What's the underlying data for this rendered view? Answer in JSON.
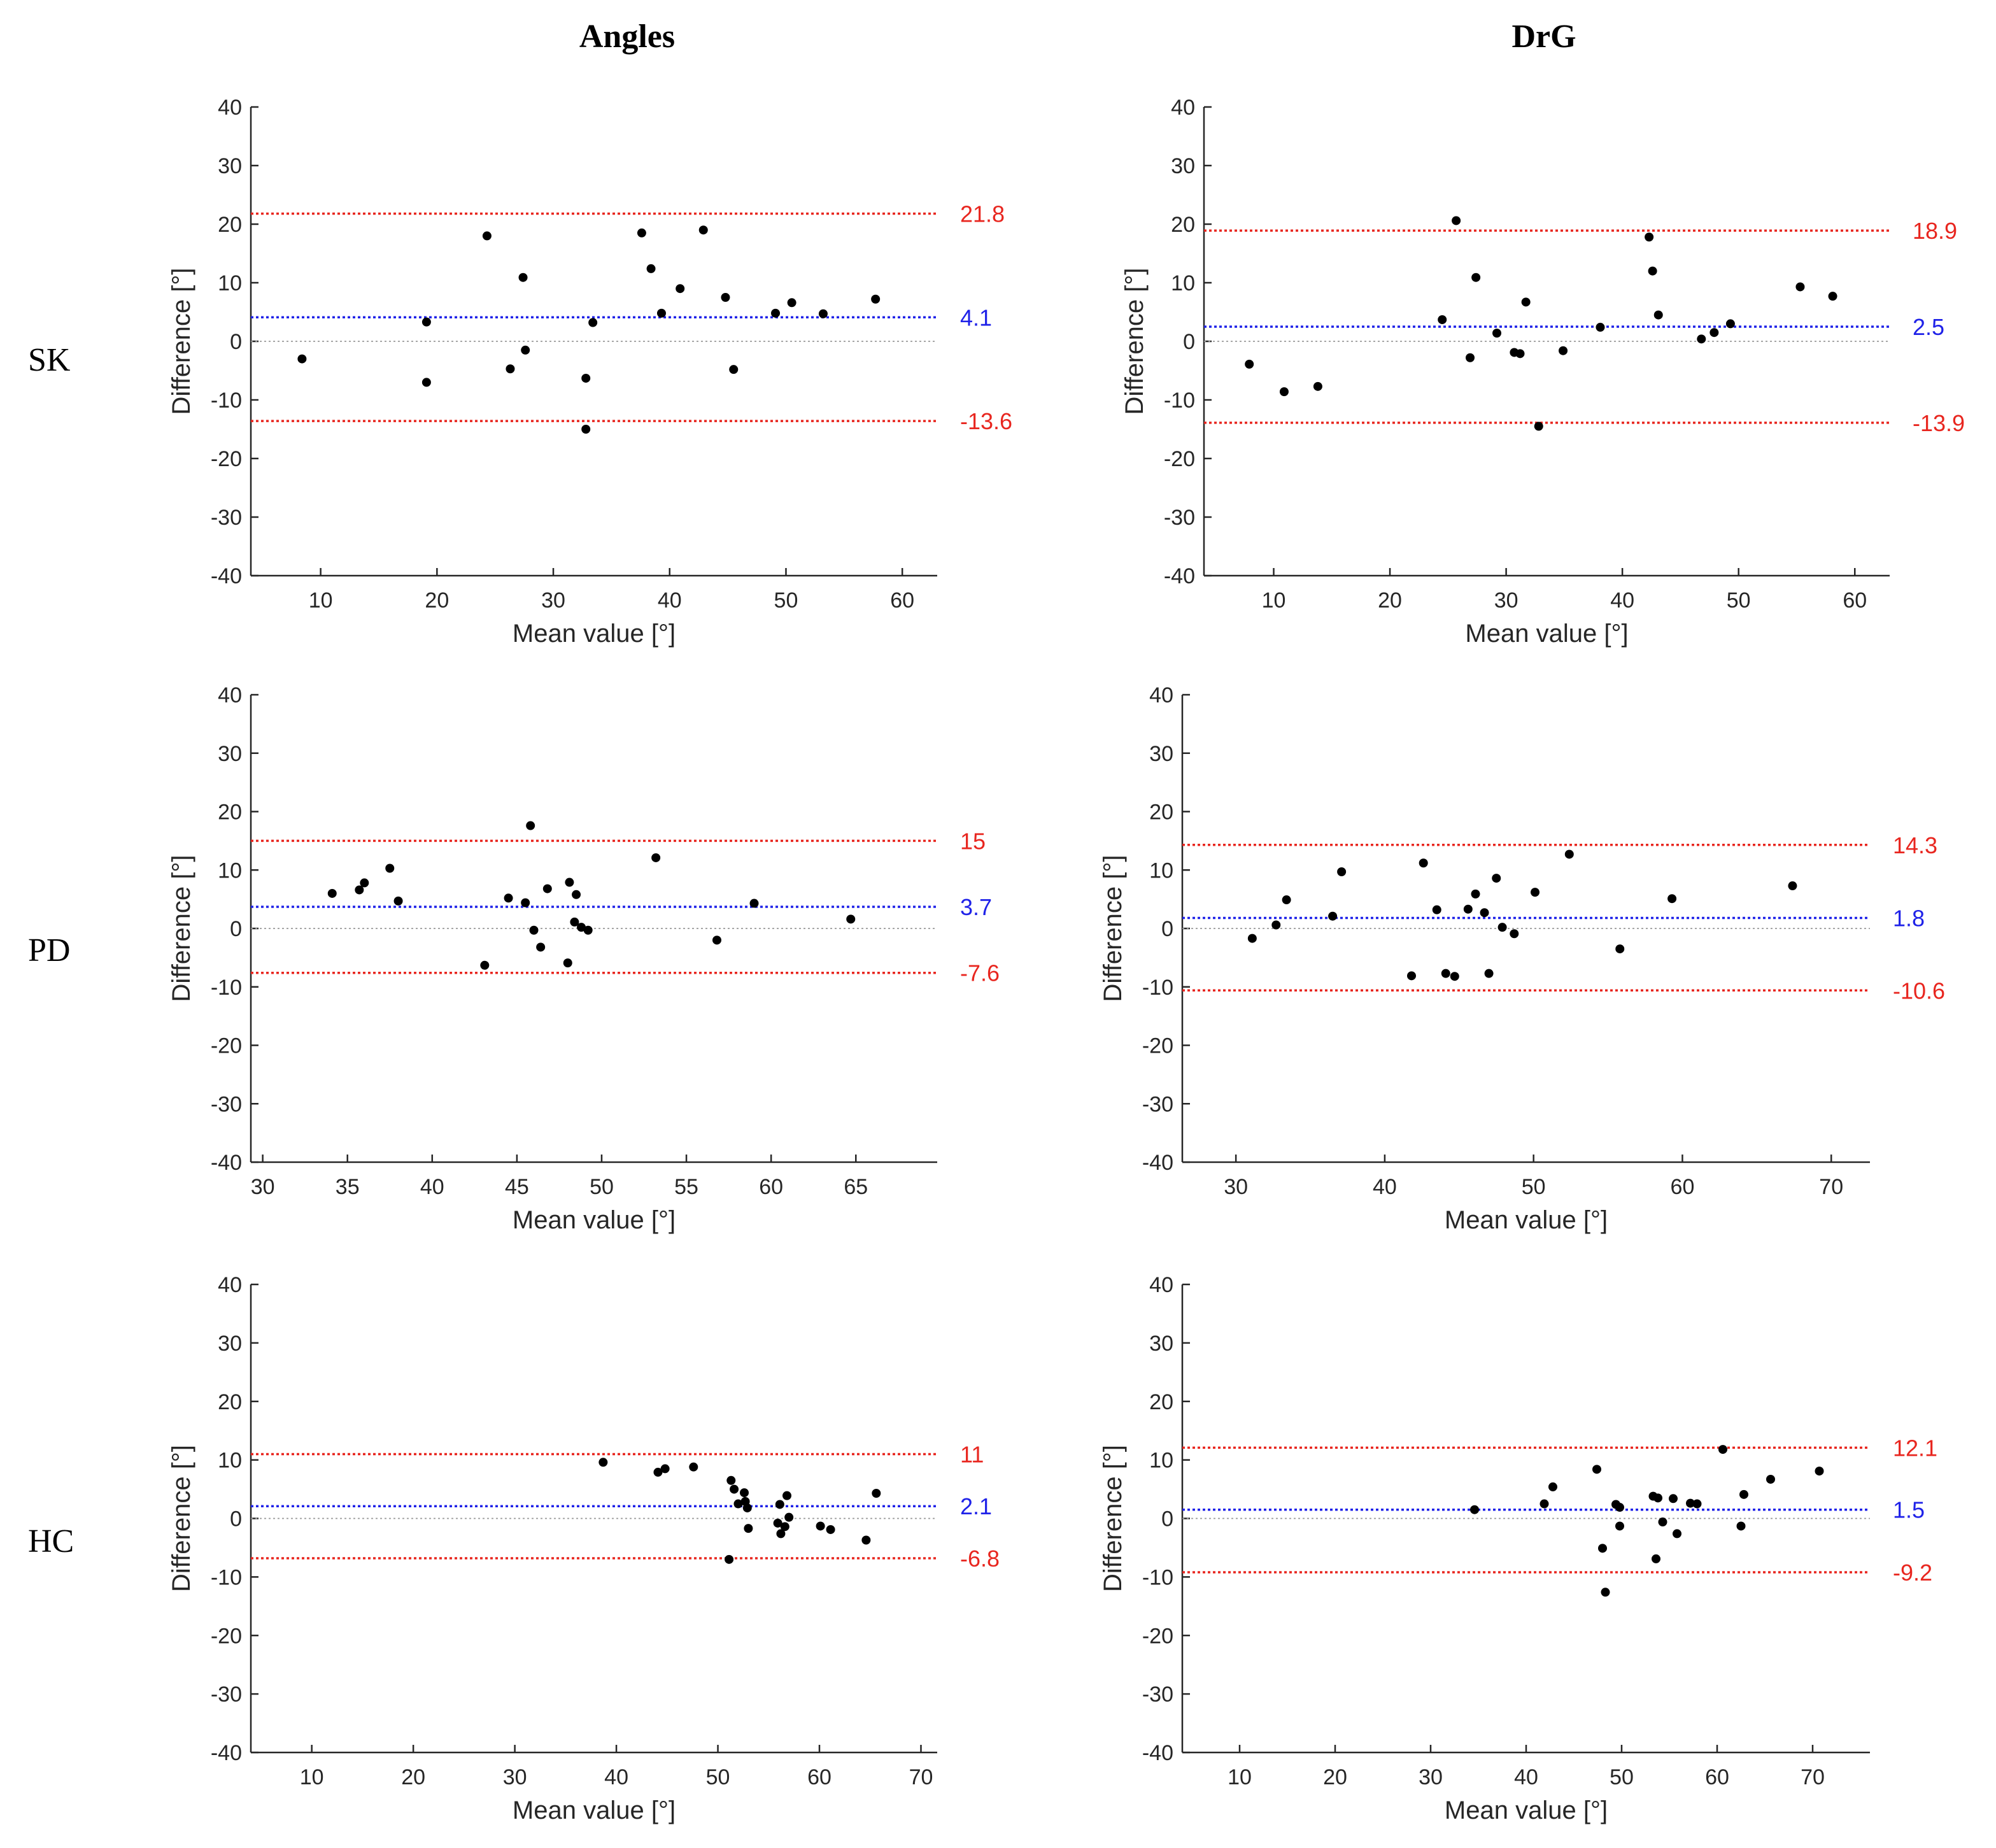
{
  "column_titles": [
    "Angles",
    "DrG"
  ],
  "row_labels": [
    "SK",
    "PD",
    "HC"
  ],
  "colors": {
    "limit": "#e8261f",
    "mean": "#1f22e8",
    "zero": "#9a9a9a",
    "point": "#000000",
    "axis": "#262626"
  },
  "chart_data": [
    {
      "type": "scatter",
      "row": "SK",
      "column": "Angles",
      "xlabel": "Mean value [°]",
      "ylabel": "Difference [°]",
      "xlim": [
        4,
        63
      ],
      "ylim": [
        -40,
        40
      ],
      "xticks": [
        10,
        20,
        30,
        40,
        50,
        60
      ],
      "yticks": [
        -40,
        -30,
        -20,
        -10,
        0,
        10,
        20,
        30,
        40
      ],
      "grid": false,
      "reference_lines": [
        {
          "kind": "upper",
          "value": 21.8,
          "label": "21.8"
        },
        {
          "kind": "mean",
          "value": 4.1,
          "label": "4.1"
        },
        {
          "kind": "lower",
          "value": -13.6,
          "label": "-13.6"
        }
      ],
      "points": [
        [
          8.4,
          -3
        ],
        [
          19.1,
          3.3
        ],
        [
          19.1,
          -7
        ],
        [
          24.3,
          18
        ],
        [
          26.3,
          -4.7
        ],
        [
          27.4,
          10.9
        ],
        [
          27.6,
          -1.5
        ],
        [
          32.8,
          -6.3
        ],
        [
          32.8,
          -15
        ],
        [
          33.4,
          3.2
        ],
        [
          37.6,
          18.5
        ],
        [
          38.4,
          12.4
        ],
        [
          39.3,
          4.8
        ],
        [
          40.9,
          9
        ],
        [
          42.9,
          19
        ],
        [
          44.8,
          7.5
        ],
        [
          45.5,
          -4.8
        ],
        [
          49.1,
          4.8
        ],
        [
          50.5,
          6.6
        ],
        [
          53.2,
          4.7
        ],
        [
          57.7,
          7.2
        ]
      ]
    },
    {
      "type": "scatter",
      "row": "SK",
      "column": "DrG",
      "xlabel": "Mean value [°]",
      "ylabel": "Difference [°]",
      "xlim": [
        4,
        63
      ],
      "ylim": [
        -40,
        40
      ],
      "xticks": [
        10,
        20,
        30,
        40,
        50,
        60
      ],
      "yticks": [
        -40,
        -30,
        -20,
        -10,
        0,
        10,
        20,
        30,
        40
      ],
      "grid": false,
      "reference_lines": [
        {
          "kind": "upper",
          "value": 18.9,
          "label": "18.9"
        },
        {
          "kind": "mean",
          "value": 2.5,
          "label": "2.5"
        },
        {
          "kind": "lower",
          "value": -13.9,
          "label": "-13.9"
        }
      ],
      "points": [
        [
          7.9,
          -3.9
        ],
        [
          10.9,
          -8.6
        ],
        [
          13.8,
          -7.7
        ],
        [
          24.5,
          3.7
        ],
        [
          25.7,
          20.6
        ],
        [
          26.9,
          -2.8
        ],
        [
          27.4,
          10.9
        ],
        [
          29.2,
          1.4
        ],
        [
          30.7,
          -1.9
        ],
        [
          31.2,
          -2.1
        ],
        [
          31.7,
          6.7
        ],
        [
          32.8,
          -14.5
        ],
        [
          34.9,
          -1.6
        ],
        [
          38.1,
          2.4
        ],
        [
          42.3,
          17.8
        ],
        [
          42.6,
          12
        ],
        [
          43.1,
          4.5
        ],
        [
          46.8,
          0.4
        ],
        [
          47.9,
          1.5
        ],
        [
          49.3,
          3
        ],
        [
          55.3,
          9.3
        ],
        [
          58.1,
          7.7
        ]
      ]
    },
    {
      "type": "scatter",
      "row": "PD",
      "column": "Angles",
      "xlabel": "Mean value [°]",
      "ylabel": "Difference [°]",
      "xlim": [
        29.3,
        69.8
      ],
      "ylim": [
        -40,
        40
      ],
      "xticks": [
        30,
        35,
        40,
        45,
        50,
        55,
        60,
        65
      ],
      "yticks": [
        -40,
        -30,
        -20,
        -10,
        0,
        10,
        20,
        30,
        40
      ],
      "grid": false,
      "reference_lines": [
        {
          "kind": "upper",
          "value": 15,
          "label": "15"
        },
        {
          "kind": "mean",
          "value": 3.7,
          "label": "3.7"
        },
        {
          "kind": "lower",
          "value": -7.6,
          "label": "-7.6"
        }
      ],
      "points": [
        [
          34.1,
          6
        ],
        [
          35.7,
          6.6
        ],
        [
          36,
          7.8
        ],
        [
          37.5,
          10.3
        ],
        [
          38,
          4.7
        ],
        [
          43.1,
          -6.3
        ],
        [
          44.5,
          5.2
        ],
        [
          45.5,
          4.4
        ],
        [
          45.8,
          17.6
        ],
        [
          46,
          -0.3
        ],
        [
          46.4,
          -3.2
        ],
        [
          46.8,
          6.8
        ],
        [
          48,
          -5.9
        ],
        [
          48.1,
          7.9
        ],
        [
          48.4,
          1.1
        ],
        [
          48.5,
          5.8
        ],
        [
          48.8,
          0.2
        ],
        [
          49.2,
          -0.3
        ],
        [
          53.2,
          12.1
        ],
        [
          56.8,
          -2
        ],
        [
          59,
          4.3
        ],
        [
          64.7,
          1.6
        ]
      ]
    },
    {
      "type": "scatter",
      "row": "PD",
      "column": "DrG",
      "xlabel": "Mean value [°]",
      "ylabel": "Difference [°]",
      "xlim": [
        26.4,
        72.6
      ],
      "ylim": [
        -40,
        40
      ],
      "xticks": [
        30,
        40,
        50,
        60,
        70
      ],
      "yticks": [
        -40,
        -30,
        -20,
        -10,
        0,
        10,
        20,
        30,
        40
      ],
      "grid": false,
      "reference_lines": [
        {
          "kind": "upper",
          "value": 14.3,
          "label": "14.3"
        },
        {
          "kind": "mean",
          "value": 1.8,
          "label": "1.8"
        },
        {
          "kind": "lower",
          "value": -10.6,
          "label": "-10.6"
        }
      ],
      "points": [
        [
          31.1,
          -1.7
        ],
        [
          32.7,
          0.6
        ],
        [
          33.4,
          4.9
        ],
        [
          36.5,
          2.1
        ],
        [
          37.1,
          9.7
        ],
        [
          41.8,
          -8.1
        ],
        [
          42.6,
          11.2
        ],
        [
          43.5,
          3.2
        ],
        [
          44.1,
          -7.7
        ],
        [
          44.7,
          -8.2
        ],
        [
          45.6,
          3.3
        ],
        [
          46.1,
          5.9
        ],
        [
          46.7,
          2.7
        ],
        [
          47,
          -7.7
        ],
        [
          47.5,
          8.6
        ],
        [
          47.9,
          0.2
        ],
        [
          48.7,
          -0.9
        ],
        [
          50.1,
          6.2
        ],
        [
          52.4,
          12.7
        ],
        [
          55.8,
          -3.5
        ],
        [
          59.3,
          5.1
        ],
        [
          67.4,
          7.3
        ]
      ]
    },
    {
      "type": "scatter",
      "row": "HC",
      "column": "Angles",
      "xlabel": "Mean value [°]",
      "ylabel": "Difference [°]",
      "xlim": [
        4,
        71.6
      ],
      "ylim": [
        -40,
        40
      ],
      "xticks": [
        10,
        20,
        30,
        40,
        50,
        60,
        70
      ],
      "yticks": [
        -40,
        -30,
        -20,
        -10,
        0,
        10,
        20,
        30,
        40
      ],
      "grid": false,
      "reference_lines": [
        {
          "kind": "upper",
          "value": 11,
          "label": "11"
        },
        {
          "kind": "mean",
          "value": 2.1,
          "label": "2.1"
        },
        {
          "kind": "lower",
          "value": -6.8,
          "label": "-6.8"
        }
      ],
      "points": [
        [
          38.7,
          9.6
        ],
        [
          44.1,
          7.9
        ],
        [
          44.8,
          8.5
        ],
        [
          47.6,
          8.8
        ],
        [
          51.1,
          -7
        ],
        [
          51.3,
          6.5
        ],
        [
          51.6,
          5
        ],
        [
          52,
          2.5
        ],
        [
          52.6,
          4.4
        ],
        [
          52.7,
          2.9
        ],
        [
          52.9,
          1.8
        ],
        [
          53,
          -1.7
        ],
        [
          55.9,
          -0.8
        ],
        [
          56.1,
          2.4
        ],
        [
          56.2,
          -2.6
        ],
        [
          56.6,
          -1.4
        ],
        [
          56.8,
          3.9
        ],
        [
          57,
          0.2
        ],
        [
          60.1,
          -1.3
        ],
        [
          61.1,
          -1.9
        ],
        [
          64.6,
          -3.7
        ],
        [
          65.6,
          4.3
        ]
      ]
    },
    {
      "type": "scatter",
      "row": "HC",
      "column": "DrG",
      "xlabel": "Mean value [°]",
      "ylabel": "Difference [°]",
      "xlim": [
        4,
        76
      ],
      "ylim": [
        -40,
        40
      ],
      "xticks": [
        10,
        20,
        30,
        40,
        50,
        60,
        70
      ],
      "yticks": [
        -40,
        -30,
        -20,
        -10,
        0,
        10,
        20,
        30,
        40
      ],
      "grid": false,
      "reference_lines": [
        {
          "kind": "upper",
          "value": 12.1,
          "label": "12.1"
        },
        {
          "kind": "mean",
          "value": 1.5,
          "label": "1.5"
        },
        {
          "kind": "lower",
          "value": -9.2,
          "label": "-9.2"
        }
      ],
      "points": [
        [
          34.6,
          1.5
        ],
        [
          41.9,
          2.5
        ],
        [
          42.8,
          5.4
        ],
        [
          47.4,
          8.4
        ],
        [
          48,
          -5.1
        ],
        [
          48.3,
          -12.6
        ],
        [
          49.4,
          2.4
        ],
        [
          49.8,
          -1.3
        ],
        [
          49.8,
          1.9
        ],
        [
          53.3,
          3.8
        ],
        [
          53.6,
          -6.9
        ],
        [
          53.8,
          3.5
        ],
        [
          54.3,
          -0.6
        ],
        [
          55.4,
          3.4
        ],
        [
          55.8,
          -2.6
        ],
        [
          57.2,
          2.6
        ],
        [
          57.9,
          2.5
        ],
        [
          60.6,
          11.8
        ],
        [
          62.5,
          -1.3
        ],
        [
          62.8,
          4.1
        ],
        [
          65.6,
          6.7
        ],
        [
          70.7,
          8.1
        ]
      ]
    }
  ]
}
